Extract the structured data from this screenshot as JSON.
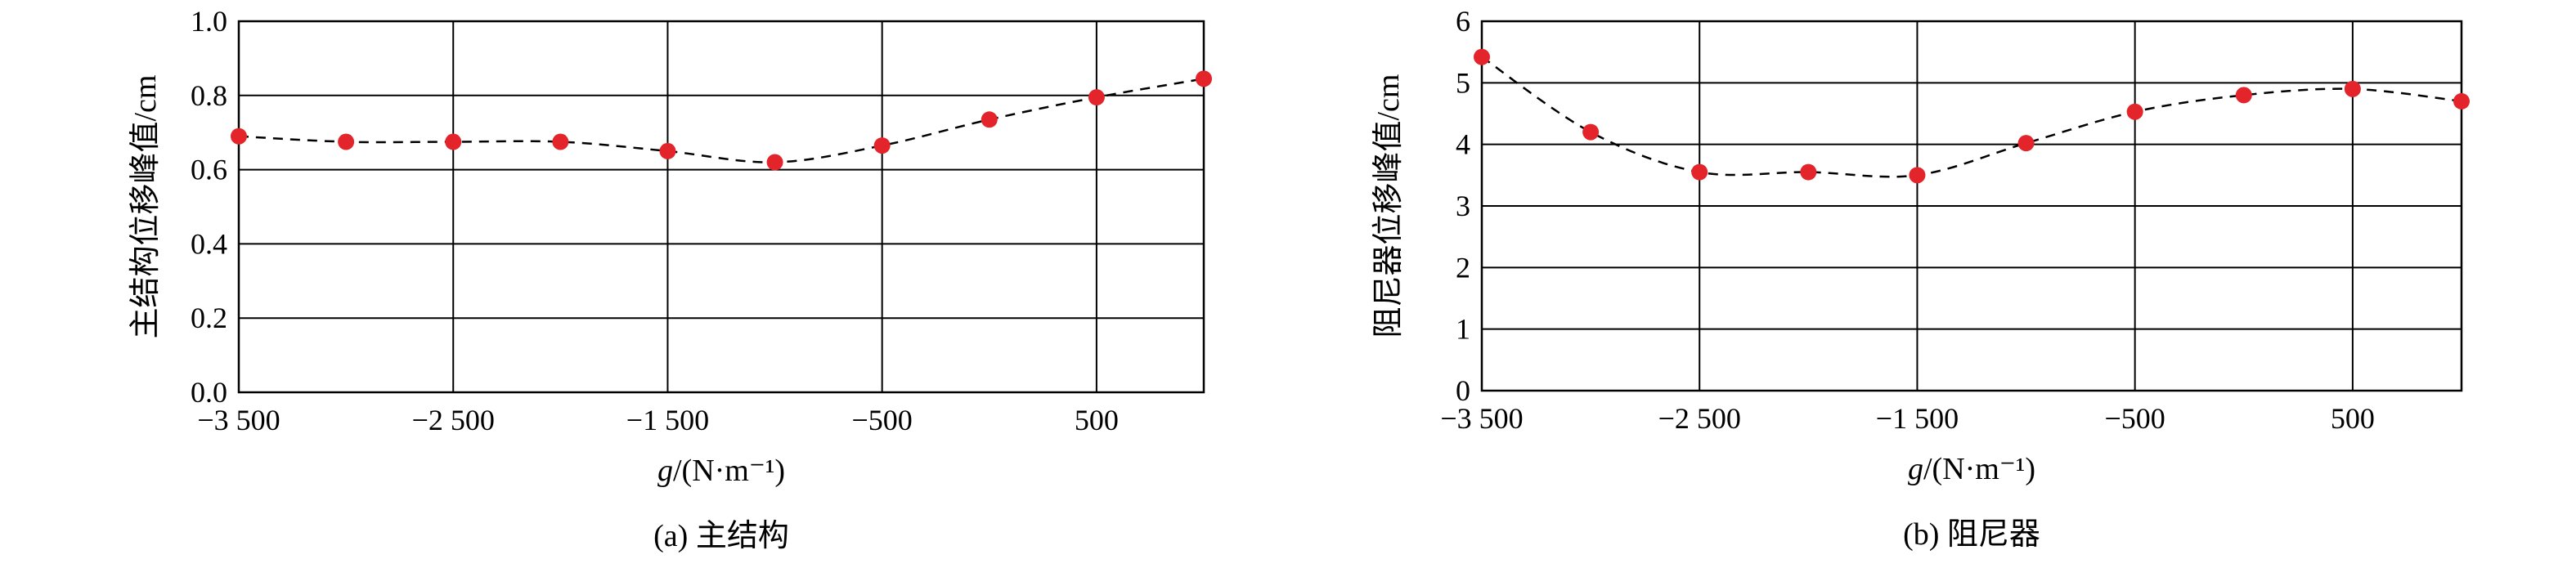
{
  "colors": {
    "point": "#e3242b",
    "line": "#000000",
    "grid": "#000000"
  },
  "chart_data": [
    {
      "type": "scatter",
      "caption": "(a) 主结构",
      "xlabel_italic": "g",
      "xlabel_rest": "/(N·m⁻¹)",
      "ylabel": "主结构位移峰值/cm",
      "xlim": [
        -3500,
        1000
      ],
      "ylim": [
        0,
        1.0
      ],
      "xticks": [
        -3500,
        -2500,
        -1500,
        -500,
        500
      ],
      "xtick_labels": [
        "−3 500",
        "−2 500",
        "−1 500",
        "−500",
        "500"
      ],
      "yticks": [
        0,
        0.2,
        0.4,
        0.6,
        0.8,
        1.0
      ],
      "ytick_labels": [
        "0.0",
        "0.2",
        "0.4",
        "0.6",
        "0.8",
        "1.0"
      ],
      "grid": true,
      "trend": "dashed",
      "x": [
        -3500,
        -3000,
        -2500,
        -2000,
        -1500,
        -1000,
        -500,
        0,
        500,
        1000
      ],
      "y": [
        0.69,
        0.675,
        0.675,
        0.675,
        0.65,
        0.62,
        0.665,
        0.735,
        0.795,
        0.845
      ]
    },
    {
      "type": "scatter",
      "caption": "(b) 阻尼器",
      "xlabel_italic": "g",
      "xlabel_rest": "/(N·m⁻¹)",
      "ylabel": "阻尼器位移峰值/cm",
      "xlim": [
        -3500,
        1000
      ],
      "ylim": [
        0,
        6
      ],
      "xticks": [
        -3500,
        -2500,
        -1500,
        -500,
        500
      ],
      "xtick_labels": [
        "−3 500",
        "−2 500",
        "−1 500",
        "−500",
        "500"
      ],
      "yticks": [
        0,
        1,
        2,
        3,
        4,
        5,
        6
      ],
      "ytick_labels": [
        "0",
        "1",
        "2",
        "3",
        "4",
        "5",
        "6"
      ],
      "grid": true,
      "trend": "dashed",
      "x": [
        -3500,
        -3000,
        -2500,
        -2000,
        -1500,
        -1000,
        -500,
        0,
        500,
        1000
      ],
      "y": [
        5.42,
        4.2,
        3.55,
        3.55,
        3.5,
        4.02,
        4.53,
        4.8,
        4.9,
        4.7
      ]
    }
  ]
}
